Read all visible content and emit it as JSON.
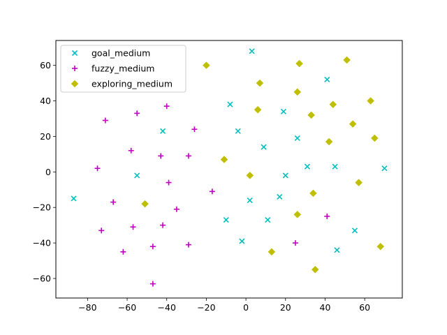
{
  "chart_data": {
    "type": "scatter",
    "title": "",
    "xlabel": "",
    "ylabel": "",
    "xlim": [
      -96,
      79
    ],
    "ylim": [
      -71,
      74
    ],
    "xticks": [
      -80,
      -60,
      -40,
      -20,
      0,
      20,
      40,
      60
    ],
    "yticks": [
      -60,
      -40,
      -20,
      0,
      20,
      40,
      60
    ],
    "xtick_labels": [
      "−80",
      "−60",
      "−40",
      "−20",
      "0",
      "20",
      "40",
      "60"
    ],
    "ytick_labels": [
      "−60",
      "−40",
      "−20",
      "0",
      "20",
      "40",
      "60"
    ],
    "grid": false,
    "legend_position": "upper-left",
    "series": [
      {
        "name": "goal_medium",
        "marker": "x",
        "color": "#00bfbf",
        "points": [
          [
            3,
            68
          ],
          [
            41,
            52
          ],
          [
            -8,
            38
          ],
          [
            19,
            34
          ],
          [
            -42,
            23
          ],
          [
            -4,
            23
          ],
          [
            26,
            19
          ],
          [
            9,
            14
          ],
          [
            -55,
            -2
          ],
          [
            20,
            -2
          ],
          [
            31,
            3
          ],
          [
            45,
            3
          ],
          [
            70,
            2
          ],
          [
            -87,
            -15
          ],
          [
            2,
            -16
          ],
          [
            17,
            -14
          ],
          [
            -10,
            -27
          ],
          [
            11,
            -27
          ],
          [
            55,
            -33
          ],
          [
            -2,
            -39
          ],
          [
            46,
            -44
          ]
        ]
      },
      {
        "name": "fuzzy_medium",
        "marker": "+",
        "color": "#bf00bf",
        "points": [
          [
            -55,
            33
          ],
          [
            -40,
            37
          ],
          [
            -71,
            29
          ],
          [
            -26,
            24
          ],
          [
            -58,
            12
          ],
          [
            -43,
            9
          ],
          [
            -29,
            9
          ],
          [
            -75,
            2
          ],
          [
            -39,
            -6
          ],
          [
            -17,
            -11
          ],
          [
            -67,
            -17
          ],
          [
            -35,
            -21
          ],
          [
            -73,
            -33
          ],
          [
            -57,
            -31
          ],
          [
            -42,
            -30
          ],
          [
            -29,
            -41
          ],
          [
            -47,
            -42
          ],
          [
            -62,
            -45
          ],
          [
            -47,
            -63
          ],
          [
            41,
            -25
          ],
          [
            25,
            -40
          ]
        ]
      },
      {
        "name": "exploring_medium",
        "marker": "D",
        "color": "#bfbf00",
        "points": [
          [
            -20,
            60
          ],
          [
            27,
            61
          ],
          [
            51,
            63
          ],
          [
            7,
            50
          ],
          [
            26,
            45
          ],
          [
            63,
            40
          ],
          [
            44,
            38
          ],
          [
            6,
            35
          ],
          [
            33,
            32
          ],
          [
            54,
            27
          ],
          [
            65,
            19
          ],
          [
            42,
            17
          ],
          [
            -11,
            7
          ],
          [
            2,
            -2
          ],
          [
            57,
            -6
          ],
          [
            34,
            -12
          ],
          [
            -51,
            -18
          ],
          [
            26,
            -24
          ],
          [
            13,
            -45
          ],
          [
            68,
            -42
          ],
          [
            35,
            -55
          ]
        ]
      }
    ]
  }
}
